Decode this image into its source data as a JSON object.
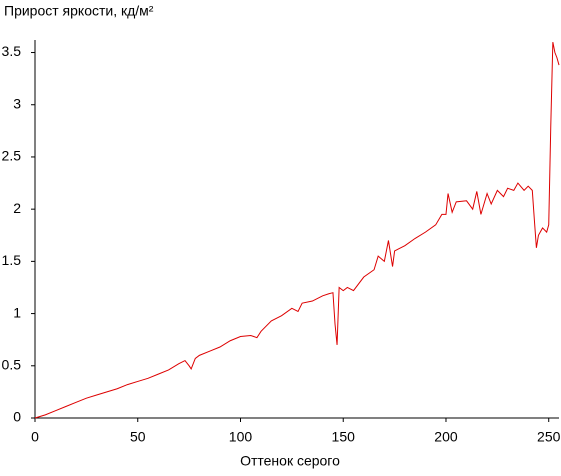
{
  "chart_data": {
    "type": "line",
    "title": "Прирост яркости, кд/м²",
    "x_label": "Оттенок серого",
    "xlim": [
      0,
      255
    ],
    "xticks": [
      0,
      50,
      100,
      150,
      200,
      250
    ],
    "ylim": [
      0,
      3.62
    ],
    "yticks": [
      0,
      0.5,
      1,
      1.5,
      2,
      2.5,
      3,
      3.5
    ],
    "grid": false,
    "x": [
      0,
      5,
      10,
      15,
      20,
      25,
      30,
      35,
      40,
      45,
      50,
      55,
      60,
      65,
      70,
      73,
      75,
      76,
      78,
      80,
      85,
      90,
      95,
      100,
      105,
      108,
      110,
      115,
      120,
      125,
      128,
      130,
      135,
      140,
      143,
      145,
      146,
      147,
      148,
      150,
      152,
      155,
      160,
      165,
      167,
      170,
      172,
      174,
      175,
      177,
      180,
      185,
      190,
      195,
      198,
      200,
      201,
      203,
      205,
      210,
      213,
      215,
      217,
      220,
      222,
      225,
      228,
      230,
      233,
      235,
      238,
      240,
      242,
      243,
      244,
      245,
      247,
      249,
      250,
      251,
      252,
      253,
      254,
      255
    ],
    "series": [
      {
        "color": "#dd0000",
        "values": [
          0,
          0.03,
          0.07,
          0.11,
          0.15,
          0.19,
          0.22,
          0.25,
          0.28,
          0.32,
          0.35,
          0.38,
          0.42,
          0.46,
          0.52,
          0.55,
          0.5,
          0.47,
          0.57,
          0.6,
          0.64,
          0.68,
          0.74,
          0.78,
          0.79,
          0.77,
          0.83,
          0.93,
          0.98,
          1.05,
          1.02,
          1.1,
          1.12,
          1.17,
          1.19,
          1.2,
          0.9,
          0.7,
          1.25,
          1.22,
          1.25,
          1.22,
          1.35,
          1.42,
          1.55,
          1.5,
          1.7,
          1.45,
          1.6,
          1.62,
          1.65,
          1.72,
          1.78,
          1.85,
          1.95,
          1.95,
          2.15,
          1.97,
          2.07,
          2.08,
          2.0,
          2.17,
          1.95,
          2.15,
          2.05,
          2.18,
          2.12,
          2.2,
          2.18,
          2.25,
          2.18,
          2.22,
          2.18,
          1.9,
          1.63,
          1.75,
          1.82,
          1.78,
          1.85,
          2.8,
          3.6,
          3.5,
          3.45,
          3.38
        ]
      }
    ]
  }
}
